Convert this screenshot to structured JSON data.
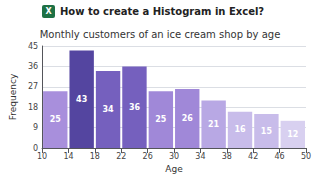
{
  "chart_data": {
    "type": "histogram",
    "title": "Monthly customers of an ice cream shop by age",
    "xlabel": "Age",
    "ylabel": "Frequency",
    "annotations": [
      "X",
      "How to create a Histogram in Excel?"
    ],
    "bins": [
      10,
      14,
      18,
      22,
      26,
      30,
      34,
      38,
      42,
      46,
      50
    ],
    "values": [
      25,
      43,
      34,
      36,
      25,
      26,
      21,
      16,
      15,
      12
    ],
    "colors": [
      "#a88fdc",
      "#5445a0",
      "#7560be",
      "#7560be",
      "#a088d8",
      "#a088d8",
      "#b8a8e4",
      "#c8bcea",
      "#c8bcea",
      "#d8d0f0"
    ],
    "xlim": [
      10,
      50
    ],
    "xticks": [
      10,
      14,
      18,
      22,
      26,
      30,
      34,
      38,
      42,
      46,
      50
    ],
    "ylim": [
      0,
      45
    ],
    "yticks": [
      0,
      9,
      18,
      27,
      36,
      45
    ],
    "grid": true,
    "data_labels": true
  }
}
